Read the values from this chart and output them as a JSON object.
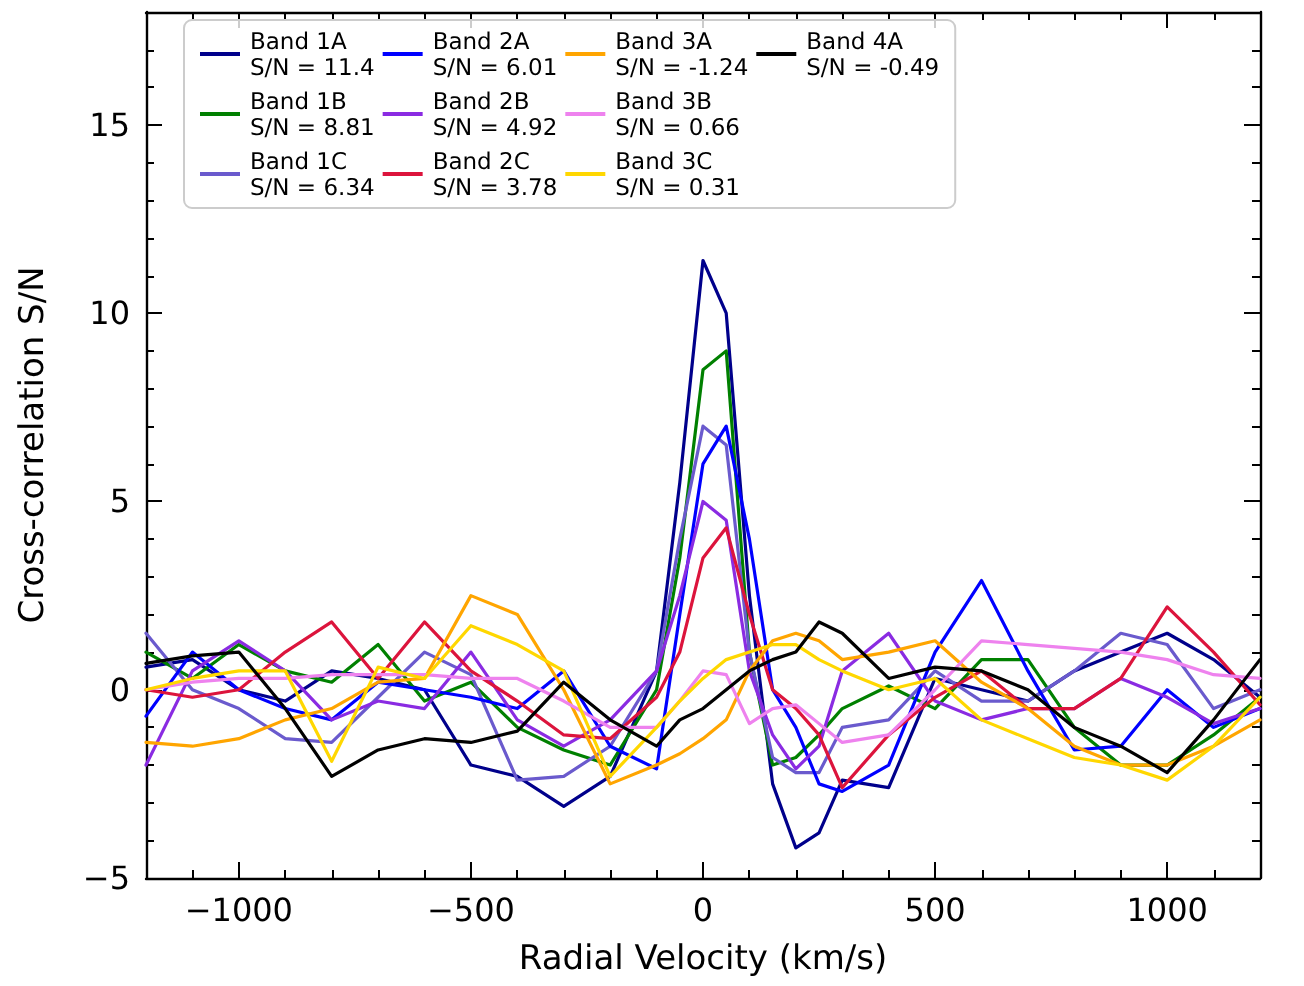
{
  "chart_data": {
    "type": "line",
    "xlabel": "Radial Velocity (km/s)",
    "ylabel": "Cross-correlation S/N",
    "x": [
      -1200,
      -1100,
      -1000,
      -900,
      -800,
      -700,
      -600,
      -500,
      -400,
      -300,
      -200,
      -100,
      -50,
      0,
      50,
      100,
      150,
      200,
      250,
      300,
      400,
      500,
      600,
      700,
      800,
      900,
      1000,
      1100,
      1200
    ],
    "series": [
      {
        "name": "Band 1A\nS/N = 11.4",
        "color": "#00008b",
        "values": [
          0.6,
          0.8,
          0.0,
          -0.3,
          0.5,
          0.3,
          0.0,
          -2.0,
          -2.3,
          -3.1,
          -2.3,
          0.5,
          5.5,
          11.4,
          10.0,
          2.5,
          -2.5,
          -4.2,
          -3.8,
          -2.4,
          -2.6,
          0.3,
          0.0,
          -0.3,
          0.5,
          1.0,
          1.5,
          0.8,
          -0.2
        ]
      },
      {
        "name": "Band 1B\nS/N = 8.81",
        "color": "#008000",
        "values": [
          1.0,
          0.3,
          1.2,
          0.5,
          0.2,
          1.2,
          -0.3,
          0.2,
          -1.0,
          -1.6,
          -2.0,
          0.0,
          3.5,
          8.5,
          9.0,
          1.0,
          -2.0,
          -1.8,
          -1.2,
          -0.5,
          0.1,
          -0.5,
          0.8,
          0.8,
          -1.0,
          -2.0,
          -2.0,
          -1.2,
          -0.2
        ]
      },
      {
        "name": "Band 1C\nS/N = 6.34",
        "color": "#6a5acd",
        "values": [
          1.5,
          0.0,
          -0.5,
          -1.3,
          -1.4,
          -0.2,
          1.0,
          0.4,
          -2.4,
          -2.3,
          -1.5,
          0.5,
          4.0,
          7.0,
          6.5,
          1.0,
          -1.8,
          -2.2,
          -2.2,
          -1.0,
          -0.8,
          0.5,
          -0.3,
          -0.3,
          0.5,
          1.5,
          1.2,
          -0.5,
          0.0
        ]
      },
      {
        "name": "Band 2A\nS/N = 6.01",
        "color": "#0000ff",
        "values": [
          -0.7,
          1.0,
          0.0,
          -0.5,
          -0.8,
          0.2,
          0.0,
          -0.2,
          -0.5,
          0.5,
          -1.5,
          -2.1,
          2.0,
          6.0,
          7.0,
          4.0,
          0.0,
          -1.0,
          -2.5,
          -2.7,
          -2.0,
          1.0,
          2.9,
          0.5,
          -1.6,
          -1.5,
          0.0,
          -1.0,
          -0.5
        ]
      },
      {
        "name": "Band 2B\nS/N = 4.92",
        "color": "#8a2be2",
        "values": [
          -2.0,
          0.5,
          1.3,
          0.5,
          -0.8,
          -0.3,
          -0.5,
          1.0,
          -0.8,
          -1.5,
          -0.8,
          0.5,
          2.5,
          5.0,
          4.5,
          0.5,
          -1.2,
          -2.1,
          -1.5,
          0.5,
          1.5,
          -0.3,
          -0.8,
          -0.5,
          -0.5,
          0.3,
          -0.2,
          -0.9,
          -0.5
        ]
      },
      {
        "name": "Band 2C\nS/N = 3.78",
        "color": "#dc143c",
        "values": [
          0.0,
          -0.2,
          0.0,
          1.0,
          1.8,
          0.3,
          1.8,
          0.5,
          -0.3,
          -1.2,
          -1.3,
          -0.2,
          1.0,
          3.5,
          4.3,
          2.0,
          0.0,
          -0.5,
          -1.2,
          -2.6,
          -1.2,
          -0.2,
          0.5,
          -0.5,
          -0.5,
          0.3,
          2.2,
          1.0,
          -0.4
        ]
      },
      {
        "name": "Band 3A\nS/N = -1.24",
        "color": "#ffa500",
        "values": [
          -1.4,
          -1.5,
          -1.3,
          -0.8,
          -0.5,
          0.2,
          0.3,
          2.5,
          2.0,
          0.0,
          -2.5,
          -2.0,
          -1.7,
          -1.3,
          -0.8,
          0.5,
          1.3,
          1.5,
          1.3,
          0.8,
          1.0,
          1.3,
          0.2,
          -0.5,
          -1.5,
          -2.0,
          -2.0,
          -1.5,
          -0.8
        ]
      },
      {
        "name": "Band 3B\nS/N = 0.66",
        "color": "#ee82ee",
        "values": [
          0.0,
          0.2,
          0.3,
          0.3,
          0.4,
          0.4,
          0.4,
          0.3,
          0.3,
          -0.3,
          -1.0,
          -1.0,
          -0.3,
          0.5,
          0.4,
          -0.9,
          -0.5,
          -0.4,
          -0.9,
          -1.4,
          -1.2,
          0.0,
          1.3,
          1.2,
          1.1,
          1.0,
          0.8,
          0.4,
          0.3
        ]
      },
      {
        "name": "Band 3C\nS/N = 0.31",
        "color": "#ffd700",
        "values": [
          0.0,
          0.3,
          0.5,
          0.5,
          -1.9,
          0.6,
          0.3,
          1.7,
          1.2,
          0.5,
          -2.3,
          -1.0,
          -0.3,
          0.3,
          0.8,
          1.0,
          1.2,
          1.2,
          0.8,
          0.5,
          0.0,
          0.3,
          -0.8,
          -1.3,
          -1.8,
          -2.0,
          -2.4,
          -1.5,
          -0.2
        ]
      },
      {
        "name": "Band 4A\nS/N = -0.49",
        "color": "#000000",
        "values": [
          0.7,
          0.9,
          1.0,
          -0.5,
          -2.3,
          -1.6,
          -1.3,
          -1.4,
          -1.1,
          0.2,
          -0.8,
          -1.5,
          -0.8,
          -0.5,
          0.0,
          0.5,
          0.8,
          1.0,
          1.8,
          1.5,
          0.3,
          0.6,
          0.5,
          0.0,
          -1.0,
          -1.5,
          -2.2,
          -0.8,
          0.8
        ]
      }
    ],
    "xlim": [
      -1200,
      1200
    ],
    "xticks": [
      -1000,
      -500,
      0,
      500,
      1000
    ],
    "ylim": [
      -5,
      18
    ],
    "yticks": [
      -5,
      0,
      5,
      10,
      15
    ],
    "grid": false,
    "legend": "top",
    "marker": "none",
    "line_style": "solid"
  }
}
